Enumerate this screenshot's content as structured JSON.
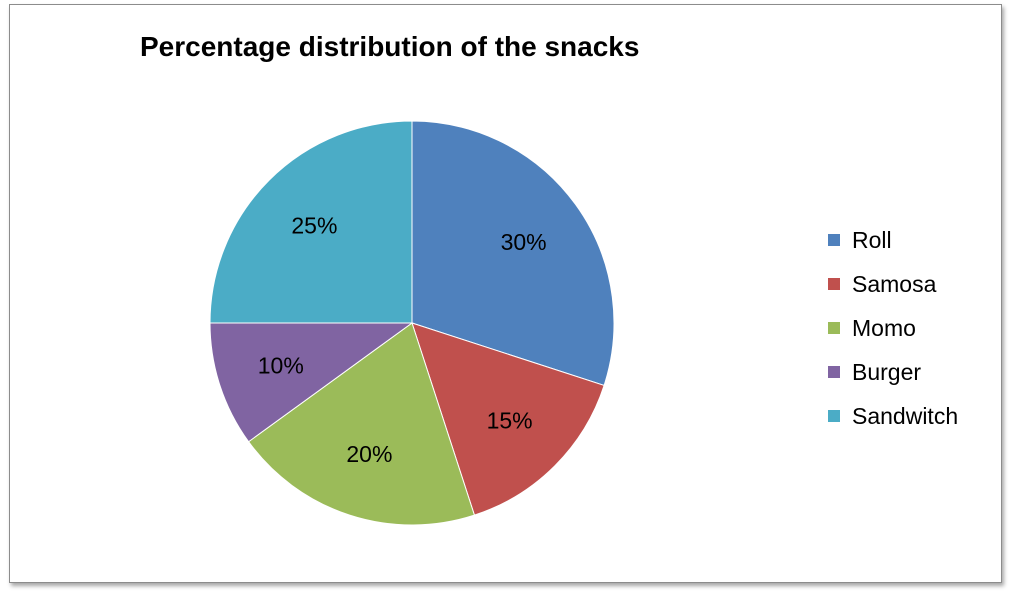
{
  "chart_data": {
    "type": "pie",
    "title": "Percentage distribution of the snacks",
    "categories": [
      "Roll",
      "Samosa",
      "Momo",
      "Burger",
      "Sandwitch"
    ],
    "values": [
      30,
      15,
      20,
      10,
      25
    ],
    "data_labels": [
      "30%",
      "15%",
      "20%",
      "10%",
      "25%"
    ],
    "colors": [
      "#4f81bd",
      "#c0504d",
      "#9bbb59",
      "#8064a2",
      "#4bacc6"
    ],
    "legend_position": "right",
    "start_angle": "12 o'clock",
    "direction": "clockwise"
  }
}
